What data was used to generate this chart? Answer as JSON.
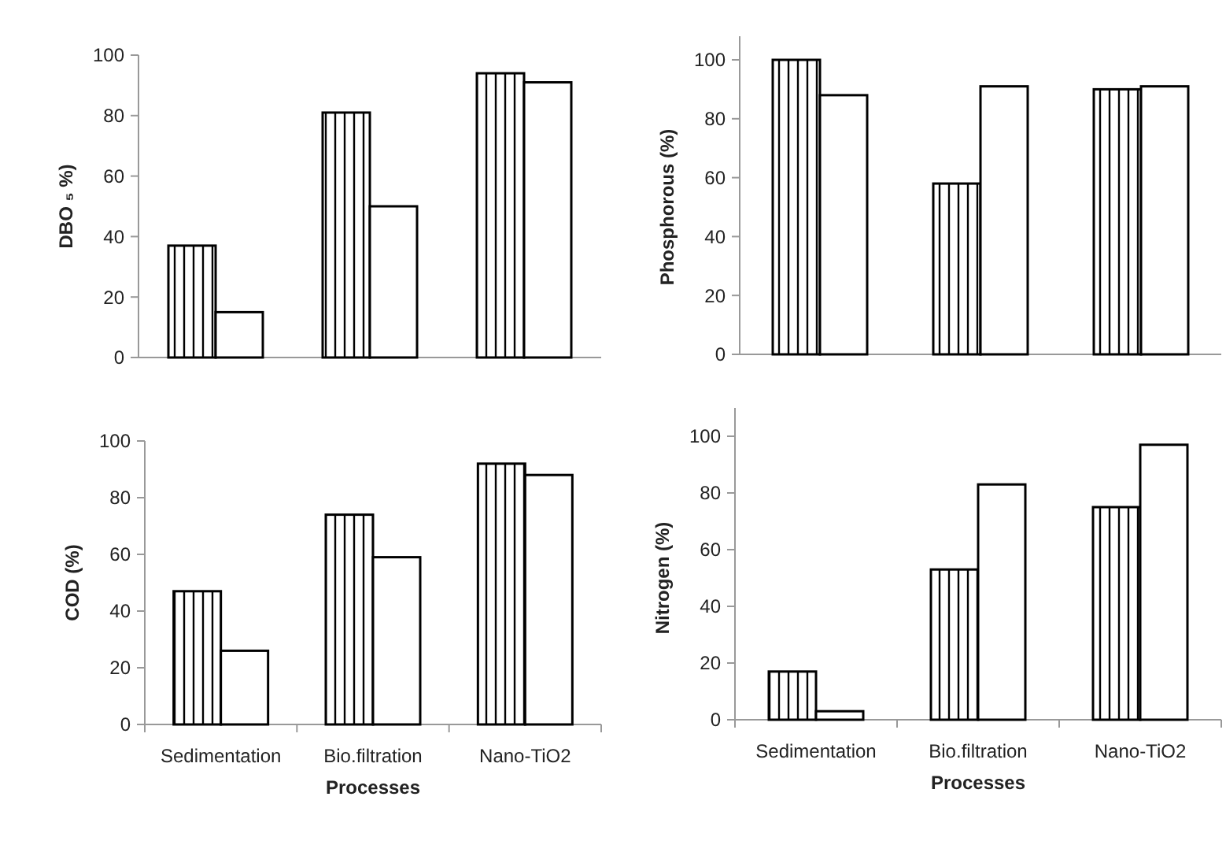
{
  "chart_data": [
    {
      "type": "bar",
      "ylabel": "DBO ₅ %)",
      "categories": [
        null,
        null,
        null
      ],
      "tick_labels": "y",
      "ylim": [
        0,
        100
      ],
      "yticks": [
        0,
        20,
        40,
        60,
        80,
        100
      ],
      "grid": false,
      "series": [
        {
          "color": "#000000",
          "values": [
            37,
            81,
            94
          ]
        },
        {
          "color": "#ffffff",
          "values": [
            15,
            50,
            91
          ]
        }
      ]
    },
    {
      "type": "bar",
      "ylabel": "Phosphorous (%)",
      "categories": [
        null,
        null,
        null
      ],
      "tick_labels": "y",
      "ylim": [
        0,
        108
      ],
      "yticks": [
        0,
        20,
        40,
        60,
        80,
        100
      ],
      "grid": false,
      "series": [
        {
          "color": "#000000",
          "values": [
            100,
            58,
            90
          ]
        },
        {
          "color": "#ffffff",
          "values": [
            88,
            91,
            91
          ]
        }
      ]
    },
    {
      "type": "bar",
      "xlabel": "Processes",
      "ylabel": "COD  (%)",
      "categories": [
        "Sedimentation",
        "Bio.filtration",
        "Nano-TiO2"
      ],
      "ylim": [
        0,
        100
      ],
      "yticks": [
        0,
        20,
        40,
        60,
        80,
        100
      ],
      "grid": false,
      "series": [
        {
          "color": "#000000",
          "values": [
            47,
            74,
            92
          ]
        },
        {
          "color": "#ffffff",
          "values": [
            26,
            59,
            88
          ]
        }
      ]
    },
    {
      "type": "bar",
      "xlabel": "Processes",
      "ylabel": "Nitrogen  (%)",
      "categories": [
        "Sedimentation",
        "Bio.filtration",
        "Nano-TiO2"
      ],
      "ylim": [
        0,
        110
      ],
      "yticks": [
        0,
        20,
        40,
        60,
        80,
        100
      ],
      "grid": false,
      "series": [
        {
          "color": "#000000",
          "values": [
            17,
            53,
            75
          ]
        },
        {
          "color": "#ffffff",
          "values": [
            3,
            83,
            97
          ]
        }
      ]
    }
  ]
}
